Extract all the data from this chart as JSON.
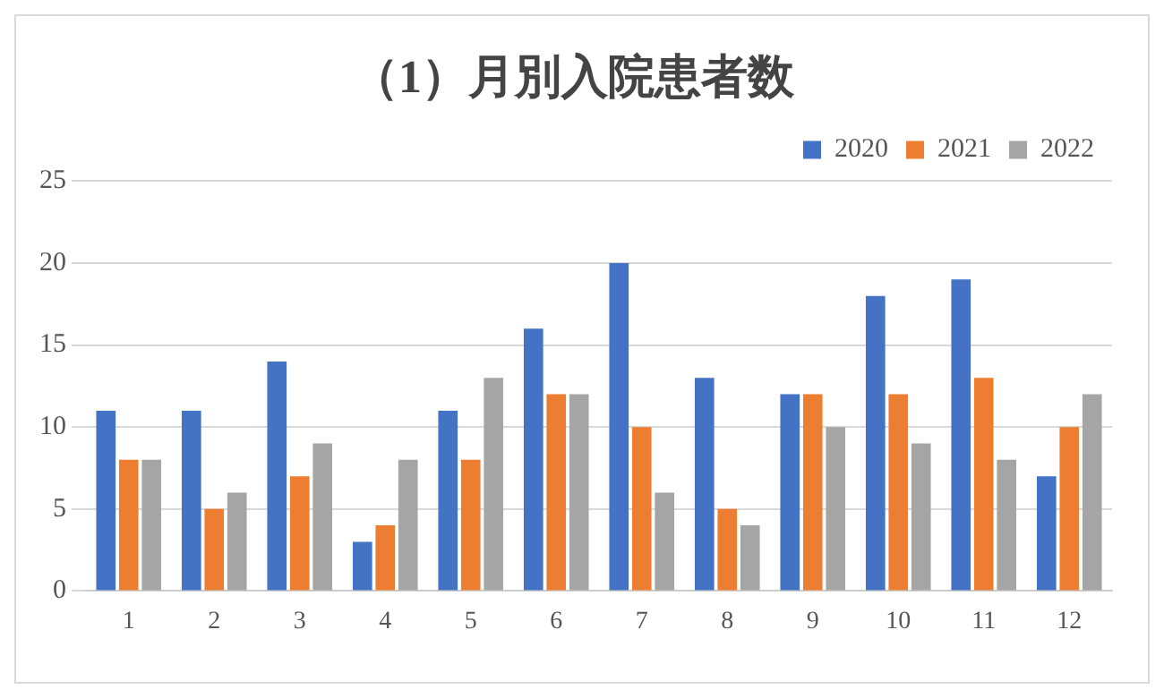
{
  "chart_data": {
    "type": "bar",
    "title": "（1）月別入院患者数",
    "categories": [
      "1",
      "2",
      "3",
      "4",
      "5",
      "6",
      "7",
      "8",
      "9",
      "10",
      "11",
      "12"
    ],
    "series": [
      {
        "name": "2020",
        "color": "#4472c4",
        "values": [
          11,
          11,
          14,
          3,
          11,
          16,
          20,
          13,
          12,
          18,
          19,
          7
        ]
      },
      {
        "name": "2021",
        "color": "#ed7d31",
        "values": [
          8,
          5,
          7,
          4,
          8,
          12,
          10,
          5,
          12,
          12,
          13,
          10
        ]
      },
      {
        "name": "2022",
        "color": "#a5a5a5",
        "values": [
          8,
          6,
          9,
          8,
          13,
          12,
          6,
          4,
          10,
          9,
          8,
          12
        ]
      }
    ],
    "ylim": [
      0,
      25
    ],
    "yticks": [
      0,
      5,
      10,
      15,
      20,
      25
    ],
    "grid": "y",
    "legend": "top right"
  }
}
